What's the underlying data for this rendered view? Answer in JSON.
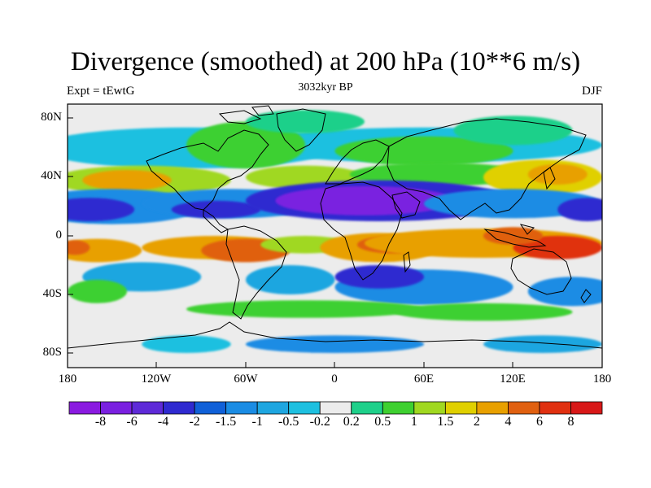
{
  "title": "Divergence (smoothed) at 200 hPa (10**6 m/s)",
  "left_label": "Expt = tEwtG",
  "center_label": "3032kyr BP",
  "right_label": "DJF",
  "chart_data": {
    "type": "heatmap",
    "variable": "Divergence (smoothed) at 200 hPa",
    "units": "10**6 m/s",
    "season": "DJF",
    "experiment": "tEwtG",
    "time": "3032kyr BP",
    "x_range": [
      -180,
      180
    ],
    "y_range": [
      -90,
      90
    ],
    "x_ticks": [
      "180",
      "120W",
      "60W",
      "0",
      "60E",
      "120E",
      "180"
    ],
    "y_ticks": [
      "80N",
      "40N",
      "0",
      "40S",
      "80S"
    ],
    "colorbar": {
      "labels": [
        "-8",
        "-6",
        "-4",
        "-2",
        "-1.5",
        "-1",
        "-0.5",
        "-0.2",
        "0.2",
        "0.5",
        "1",
        "1.5",
        "2",
        "4",
        "6",
        "8"
      ],
      "colors": [
        "#8a1ae0",
        "#7a20e0",
        "#5e2ad8",
        "#2f2ad0",
        "#1060d8",
        "#1a8ce4",
        "#1ea6e0",
        "#1ec0e0",
        "#ececec",
        "#1ed08a",
        "#3ed030",
        "#a0d820",
        "#e0d000",
        "#e8a000",
        "#e06010",
        "#e03010",
        "#d81818"
      ]
    },
    "features": [
      {
        "lon": -170,
        "lat": 18,
        "level": -4
      },
      {
        "lon": 40,
        "lat": 22,
        "level": -8
      },
      {
        "lon": 160,
        "lat": -8,
        "level": 8
      },
      {
        "lon": 30,
        "lat": -10,
        "level": 6
      },
      {
        "lon": -60,
        "lat": -10,
        "level": 6
      },
      {
        "lon": -160,
        "lat": -8,
        "level": 4
      },
      {
        "lon": -140,
        "lat": 38,
        "level": 2
      },
      {
        "lon": 140,
        "lat": 40,
        "level": 2
      },
      {
        "lon": -40,
        "lat": 60,
        "level": 1
      },
      {
        "lon": 0,
        "lat": -75,
        "level": -1
      },
      {
        "lon": 20,
        "lat": -45,
        "level": -2
      },
      {
        "lon": 160,
        "lat": -40,
        "level": -2
      }
    ]
  }
}
